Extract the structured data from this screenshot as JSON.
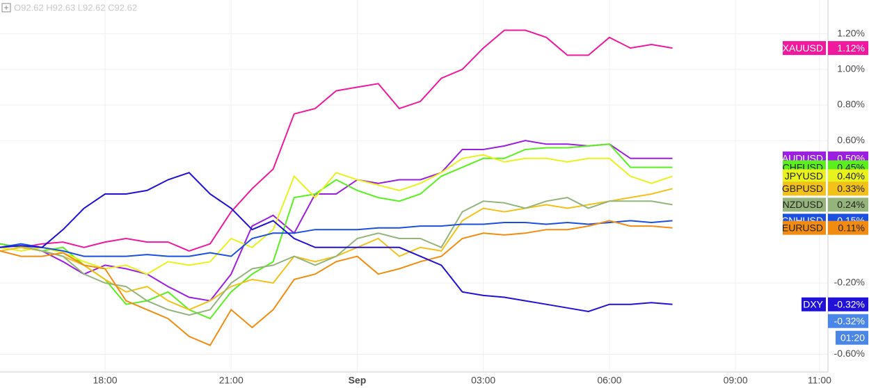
{
  "header": {
    "ohlc": "O92.62 H92.63 L92.62 C92.62"
  },
  "chart_data": {
    "type": "line",
    "x": [
      15.5,
      16,
      16.5,
      17,
      17.5,
      18,
      18.5,
      19,
      19.5,
      20,
      20.5,
      21,
      21.5,
      22,
      22.5,
      23,
      23.5,
      24,
      24.5,
      25,
      25.5,
      26,
      26.5,
      27,
      27.5,
      28,
      28.5,
      29,
      29.5,
      30,
      30.5,
      31,
      31.5
    ],
    "xlim": [
      15.5,
      35.2
    ],
    "xticks": [
      {
        "value": 18,
        "label": "18:00"
      },
      {
        "value": 21,
        "label": "21:00"
      },
      {
        "value": 24,
        "label": "Sep"
      },
      {
        "value": 27,
        "label": "03:00"
      },
      {
        "value": 30,
        "label": "06:00"
      },
      {
        "value": 33,
        "label": "09:00"
      },
      {
        "value": 35,
        "label": "11:00"
      }
    ],
    "ylim": [
      -0.7,
      1.39
    ],
    "yticks": [
      {
        "value": 1.2,
        "label": "1.20%"
      },
      {
        "value": 1.0,
        "label": "1.00%"
      },
      {
        "value": 0.8,
        "label": "0.80%"
      },
      {
        "value": 0.6,
        "label": "0.60%"
      },
      {
        "value": -0.2,
        "label": "-0.20%"
      },
      {
        "value": -0.6,
        "label": "-0.60%"
      }
    ],
    "grid": true,
    "series": [
      {
        "name": "XAUUSD",
        "color": "#f0189c",
        "value_label": "1.12%",
        "values": [
          0.02,
          0.0,
          0.02,
          0.03,
          0.0,
          0.03,
          0.05,
          0.03,
          0.03,
          -0.02,
          0.02,
          0.2,
          0.33,
          0.44,
          0.75,
          0.78,
          0.88,
          0.9,
          0.92,
          0.78,
          0.82,
          0.95,
          1.0,
          1.12,
          1.22,
          1.22,
          1.18,
          1.08,
          1.08,
          1.18,
          1.12,
          1.14,
          1.12
        ]
      },
      {
        "name": "AUDUSD",
        "color": "#9b1fe0",
        "value_label": "0.50%",
        "values": [
          0.02,
          0.0,
          -0.02,
          -0.08,
          -0.15,
          -0.1,
          -0.12,
          -0.15,
          -0.22,
          -0.28,
          -0.3,
          -0.15,
          0.12,
          0.18,
          0.08,
          0.3,
          0.3,
          0.38,
          0.36,
          0.38,
          0.38,
          0.42,
          0.55,
          0.55,
          0.57,
          0.6,
          0.58,
          0.58,
          0.57,
          0.58,
          0.5,
          0.5,
          0.5
        ]
      },
      {
        "name": "CHFUSD",
        "color": "#5af01e",
        "value_label": "0.45%",
        "values": [
          0.02,
          0.0,
          -0.02,
          0.0,
          -0.1,
          -0.18,
          -0.32,
          -0.3,
          -0.25,
          -0.35,
          -0.4,
          -0.25,
          -0.15,
          -0.08,
          0.28,
          0.3,
          0.38,
          0.32,
          0.28,
          0.26,
          0.3,
          0.4,
          0.45,
          0.5,
          0.5,
          0.55,
          0.56,
          0.56,
          0.57,
          0.58,
          0.45,
          0.45,
          0.45
        ]
      },
      {
        "name": "JPYUSD",
        "color": "#e8f21c",
        "value_label": "0.40%",
        "values": [
          0.0,
          -0.02,
          0.0,
          -0.03,
          -0.08,
          -0.12,
          -0.1,
          -0.15,
          -0.08,
          -0.1,
          -0.08,
          0.05,
          0.0,
          0.1,
          0.4,
          0.28,
          0.42,
          0.38,
          0.35,
          0.32,
          0.36,
          0.42,
          0.5,
          0.52,
          0.48,
          0.5,
          0.5,
          0.48,
          0.5,
          0.5,
          0.4,
          0.36,
          0.4
        ]
      },
      {
        "name": "GBPUSD",
        "color": "#f2c21a",
        "value_label": "0.33%",
        "values": [
          -0.02,
          0.0,
          -0.02,
          -0.05,
          -0.1,
          -0.18,
          -0.25,
          -0.22,
          -0.3,
          -0.35,
          -0.3,
          -0.22,
          -0.18,
          -0.2,
          -0.05,
          -0.08,
          -0.05,
          0.0,
          0.05,
          -0.05,
          0.0,
          -0.02,
          0.15,
          0.22,
          0.2,
          0.22,
          0.24,
          0.22,
          0.24,
          0.26,
          0.28,
          0.3,
          0.33
        ]
      },
      {
        "name": "NZDUSD",
        "color": "#95b47c",
        "value_label": "0.24%",
        "values": [
          0.0,
          0.01,
          -0.02,
          -0.05,
          -0.15,
          -0.2,
          -0.22,
          -0.3,
          -0.35,
          -0.38,
          -0.35,
          -0.2,
          -0.12,
          -0.1,
          -0.05,
          -0.1,
          -0.05,
          0.05,
          0.08,
          0.05,
          0.05,
          0.0,
          0.2,
          0.26,
          0.25,
          0.22,
          0.26,
          0.28,
          0.22,
          0.26,
          0.26,
          0.26,
          0.24
        ]
      },
      {
        "name": "CNHUSD",
        "color": "#1a4fe0",
        "value_label": "0.15%",
        "values": [
          0.0,
          0.02,
          0.0,
          -0.02,
          -0.05,
          -0.05,
          -0.05,
          -0.04,
          -0.05,
          -0.05,
          -0.03,
          -0.05,
          0.05,
          0.08,
          0.08,
          0.1,
          0.1,
          0.1,
          0.11,
          0.11,
          0.12,
          0.12,
          0.13,
          0.13,
          0.14,
          0.14,
          0.13,
          0.14,
          0.13,
          0.14,
          0.15,
          0.14,
          0.15
        ]
      },
      {
        "name": "EURUSD",
        "color": "#f28c10",
        "value_label": "0.11%",
        "values": [
          -0.02,
          -0.05,
          -0.05,
          -0.03,
          -0.1,
          -0.12,
          -0.3,
          -0.35,
          -0.4,
          -0.5,
          -0.55,
          -0.35,
          -0.45,
          -0.35,
          -0.18,
          -0.15,
          -0.08,
          -0.05,
          -0.15,
          -0.12,
          -0.08,
          -0.05,
          0.05,
          0.08,
          0.07,
          0.08,
          0.1,
          0.1,
          0.12,
          0.15,
          0.12,
          0.12,
          0.11
        ]
      },
      {
        "name": "DXY",
        "color": "#2010d8",
        "value_label": "-0.32%",
        "values": [
          0.0,
          0.01,
          0.0,
          0.1,
          0.22,
          0.3,
          0.3,
          0.32,
          0.38,
          0.42,
          0.3,
          0.22,
          0.1,
          0.15,
          0.05,
          0.0,
          0.0,
          0.0,
          0.0,
          0.0,
          -0.05,
          -0.1,
          -0.25,
          -0.27,
          -0.28,
          -0.3,
          -0.32,
          -0.34,
          -0.36,
          -0.32,
          -0.32,
          -0.31,
          -0.32
        ]
      }
    ],
    "price_label": "-0.32%",
    "countdown": "01:20"
  }
}
